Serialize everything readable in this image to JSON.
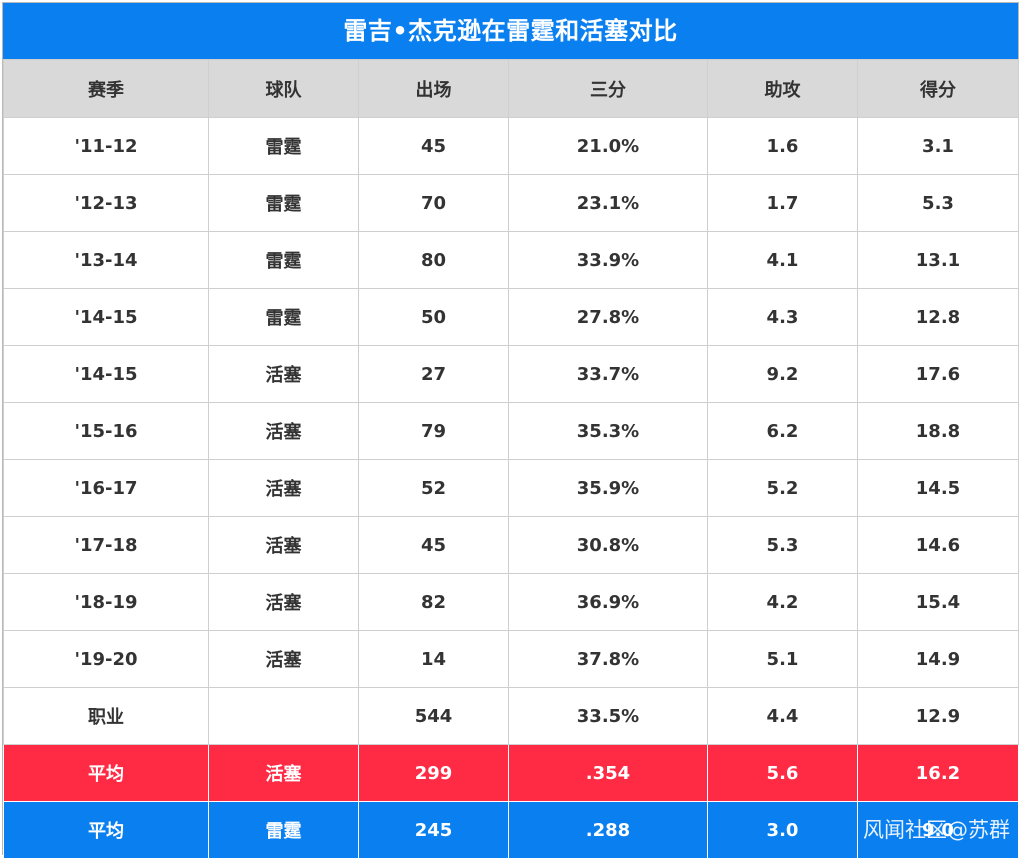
{
  "title": "雷吉•杰克逊在雷霆和活塞对比",
  "chart_data": {
    "type": "table",
    "columns": [
      "赛季",
      "球队",
      "出场",
      "三分",
      "助攻",
      "得分"
    ],
    "rows": [
      [
        "'11-12",
        "雷霆",
        "45",
        "21.0%",
        "1.6",
        "3.1"
      ],
      [
        "'12-13",
        "雷霆",
        "70",
        "23.1%",
        "1.7",
        "5.3"
      ],
      [
        "'13-14",
        "雷霆",
        "80",
        "33.9%",
        "4.1",
        "13.1"
      ],
      [
        "'14-15",
        "雷霆",
        "50",
        "27.8%",
        "4.3",
        "12.8"
      ],
      [
        "'14-15",
        "活塞",
        "27",
        "33.7%",
        "9.2",
        "17.6"
      ],
      [
        "'15-16",
        "活塞",
        "79",
        "35.3%",
        "6.2",
        "18.8"
      ],
      [
        "'16-17",
        "活塞",
        "52",
        "35.9%",
        "5.2",
        "14.5"
      ],
      [
        "'17-18",
        "活塞",
        "45",
        "30.8%",
        "5.3",
        "14.6"
      ],
      [
        "'18-19",
        "活塞",
        "82",
        "36.9%",
        "4.2",
        "15.4"
      ],
      [
        "'19-20",
        "活塞",
        "14",
        "37.8%",
        "5.1",
        "14.9"
      ],
      [
        "职业",
        "",
        "544",
        "33.5%",
        "4.4",
        "12.9"
      ]
    ],
    "summary_rows": [
      {
        "cells": [
          "平均",
          "活塞",
          "299",
          ".354",
          "5.6",
          "16.2"
        ],
        "color": "#ff2a44"
      },
      {
        "cells": [
          "平均",
          "雷霆",
          "245",
          ".288",
          "3.0",
          "9.0"
        ],
        "color": "#0a7ff0"
      }
    ]
  },
  "colors": {
    "header_bg": "#0a7ff0",
    "column_header_bg": "#d9d9d9",
    "pistons_row": "#ff2a44",
    "thunder_row": "#0a7ff0"
  },
  "watermark": "风闻社区@苏群"
}
